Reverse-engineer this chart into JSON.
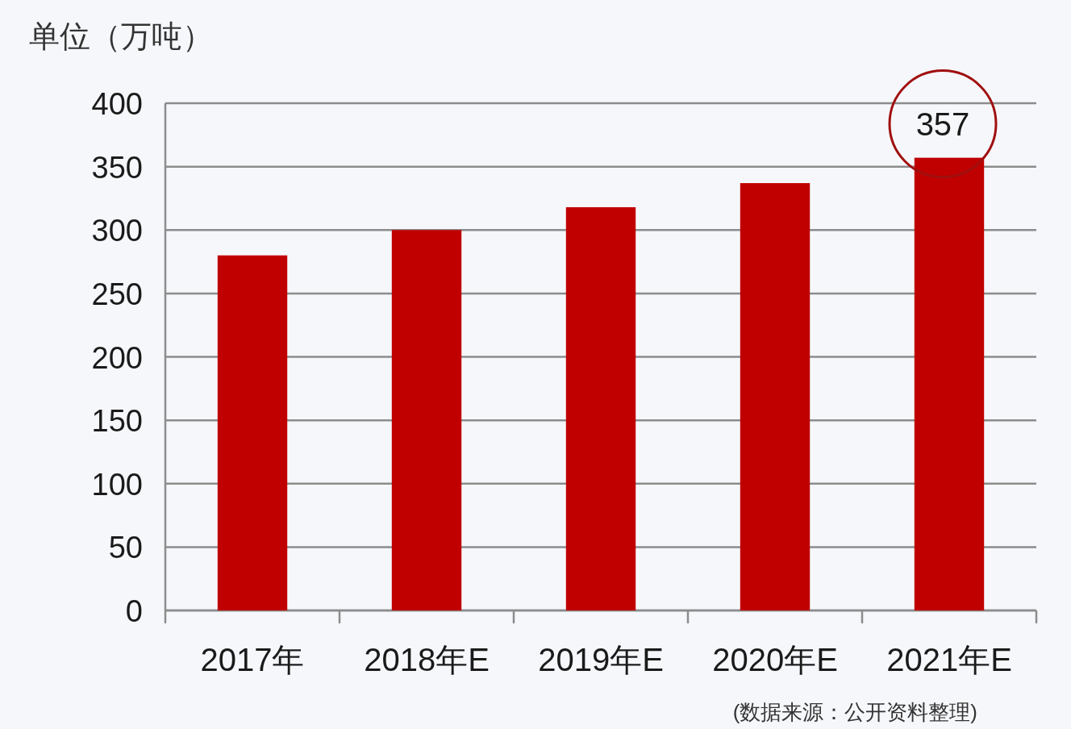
{
  "chart_data": {
    "type": "bar",
    "ylabel": "单位（万吨）",
    "annotations": [
      "(数据来源：公开资料整理)"
    ],
    "categories": [
      "2017年",
      "2018年E",
      "2019年E",
      "2020年E",
      "2021年E"
    ],
    "values": [
      280,
      300,
      318,
      337,
      357
    ],
    "color": "#c00000",
    "value_labels": [
      null,
      null,
      null,
      null,
      "357"
    ],
    "ylim": [
      0,
      400
    ],
    "yticks": [
      0,
      50,
      100,
      150,
      200,
      250,
      300,
      350,
      400
    ],
    "grid": "y"
  }
}
